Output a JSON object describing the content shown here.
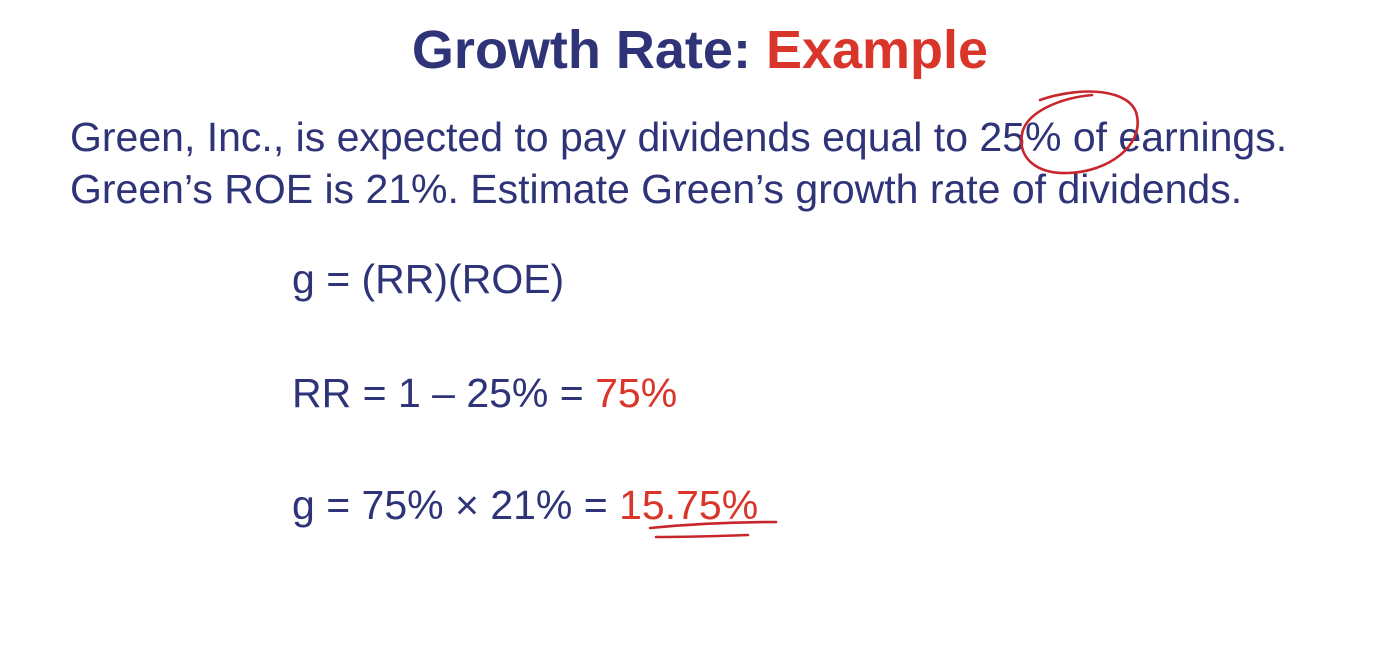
{
  "title": {
    "main": "Growth Rate: ",
    "accent": "Example"
  },
  "problem": {
    "line1_before": "Green, Inc., is expected to pay dividends equal to ",
    "line1_highlight": "25%",
    "line1_after": " of earnings.",
    "line2": "Green’s ROE is 21%. Estimate Green’s growth rate of dividends."
  },
  "formulas": {
    "f1": "g = (RR)(ROE)",
    "f2_prefix": "RR = 1 – 25% = ",
    "f2_result": "75%",
    "f3_prefix": "g = 75% × 21% = ",
    "f3_result": "15.75%"
  },
  "colors": {
    "text": "#2e3477",
    "accent": "#d9352a",
    "ink": "#c8262b"
  }
}
